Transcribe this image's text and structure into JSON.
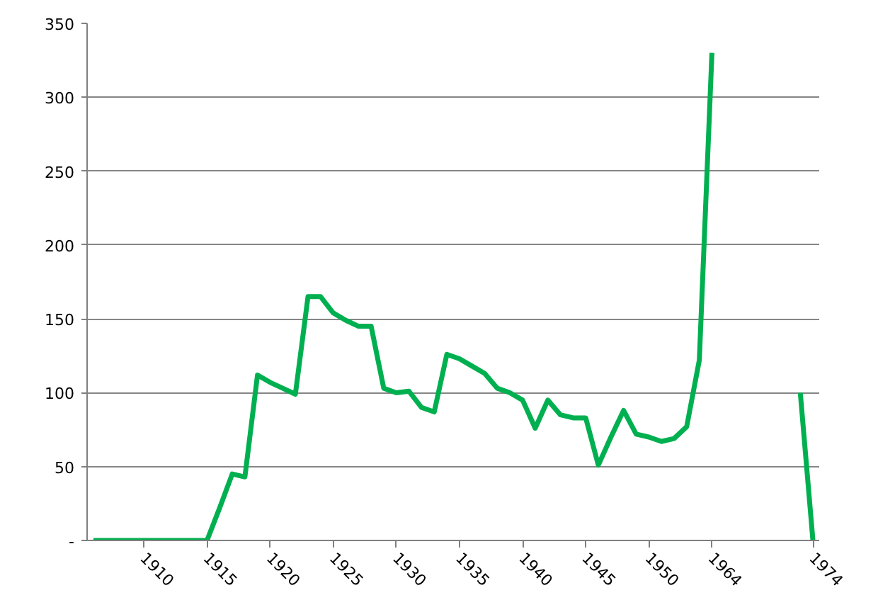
{
  "chart_data": {
    "type": "line",
    "categories": [
      null,
      null,
      null,
      null,
      "1910",
      null,
      null,
      null,
      null,
      "1915",
      null,
      null,
      null,
      null,
      "1920",
      null,
      null,
      null,
      null,
      "1925",
      null,
      null,
      null,
      null,
      "1930",
      null,
      null,
      null,
      null,
      "1935",
      null,
      null,
      null,
      null,
      "1940",
      null,
      null,
      null,
      null,
      "1945",
      null,
      null,
      null,
      null,
      "1950",
      null,
      null,
      null,
      null,
      "1964",
      null,
      null,
      null,
      null,
      null,
      null,
      null,
      "1974"
    ],
    "series": [
      {
        "color": "#00b050",
        "values": [
          0,
          0,
          0,
          0,
          0,
          0,
          0,
          0,
          0,
          0,
          22,
          45,
          43,
          112,
          107,
          103,
          99,
          165,
          165,
          154,
          149,
          145,
          145,
          103,
          100,
          101,
          90,
          87,
          126,
          123,
          118,
          113,
          103,
          100,
          95,
          76,
          95,
          85,
          83,
          83,
          51,
          70,
          88,
          72,
          70,
          67,
          69,
          77,
          122,
          330,
          null,
          null,
          null,
          null,
          null,
          null,
          100,
          0
        ]
      }
    ],
    "ylim": [
      0,
      350
    ],
    "yticks": [
      {
        "value": 0,
        "label": "-"
      },
      50,
      100,
      150,
      200,
      250,
      300,
      350
    ],
    "grid": "y",
    "line_style": "solid"
  }
}
